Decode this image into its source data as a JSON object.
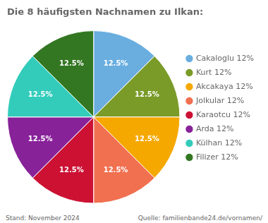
{
  "chart_data": {
    "type": "pie",
    "title": "Die 8 häufigsten Nachnamen zu Ilkan:",
    "categories": [
      "Cakaloglu 12%",
      "Kurt 12%",
      "Akcakaya 12%",
      "Jolkular 12%",
      "Karaotcu 12%",
      "Arda 12%",
      "Külhan 12%",
      "Filizer 12%"
    ],
    "values": [
      12.5,
      12.5,
      12.5,
      12.5,
      12.5,
      12.5,
      12.5,
      12.5
    ],
    "value_labels": [
      "12.5%",
      "12.5%",
      "12.5%",
      "12.5%",
      "12.5%",
      "12.5%",
      "12.5%",
      "12.5%"
    ],
    "data_labels": true,
    "colors": [
      "#6AAEE0",
      "#7A9B28",
      "#F5A800",
      "#F07050",
      "#CC1133",
      "#882299",
      "#33CCBB",
      "#337722"
    ],
    "legend": "right",
    "annotations": [
      "Stand: November 2024",
      "Quelle: familienbande24.de/vornamen/"
    ]
  }
}
